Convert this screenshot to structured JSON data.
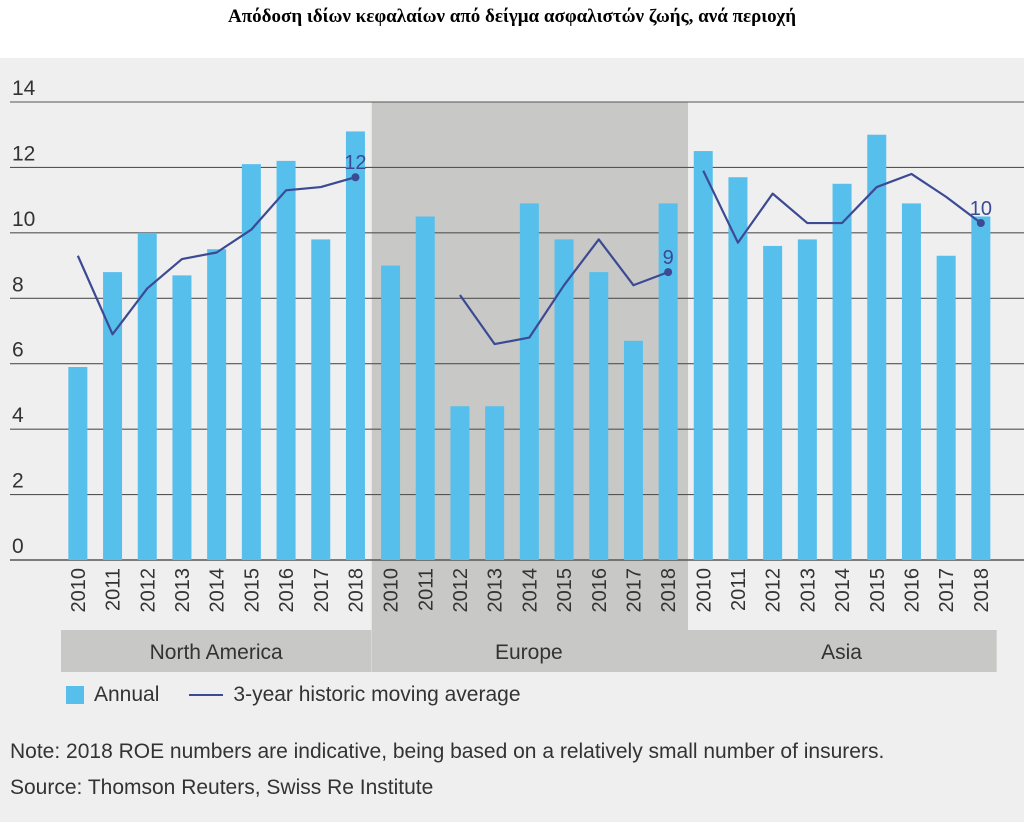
{
  "title": "Απόδοση ιδίων κεφαλαίων από δείγμα ασφαλιστών ζωής, ανά περιοχή",
  "note": "Note: 2018 ROE numbers are indicative, being based on a relatively small number of insurers.",
  "source": "Source: Thomson Reuters, Swiss Re Institute",
  "colors": {
    "bar": "#56bfeb",
    "line": "#3b4a93",
    "shade": "#c8c8c7",
    "grid": "#555555"
  },
  "chart_data": {
    "type": "bar",
    "ylim": [
      0,
      14
    ],
    "yticks": [
      0,
      2,
      4,
      6,
      8,
      10,
      12,
      14
    ],
    "legend": [
      "Annual",
      "3-year historic moving average"
    ],
    "regions": [
      {
        "name": "North America",
        "years": [
          "2010",
          "2011",
          "2012",
          "2013",
          "2014",
          "2015",
          "2016",
          "2017",
          "2018"
        ],
        "annual": [
          5.9,
          8.8,
          10.0,
          8.7,
          9.5,
          12.1,
          12.2,
          9.8,
          13.1
        ],
        "moving_average": [
          9.3,
          6.9,
          8.3,
          9.2,
          9.4,
          10.1,
          11.3,
          11.4,
          11.7
        ],
        "end_label": "12"
      },
      {
        "name": "Europe",
        "years": [
          "2010",
          "2011",
          "2012",
          "2013",
          "2014",
          "2015",
          "2016",
          "2017",
          "2018"
        ],
        "annual": [
          9.0,
          10.5,
          4.7,
          4.7,
          10.9,
          9.8,
          8.8,
          6.7,
          10.9
        ],
        "moving_average": [
          null,
          null,
          8.1,
          6.6,
          6.8,
          8.4,
          9.8,
          8.4,
          8.8
        ],
        "end_label": "9"
      },
      {
        "name": "Asia",
        "years": [
          "2010",
          "2011",
          "2012",
          "2013",
          "2014",
          "2015",
          "2016",
          "2017",
          "2018"
        ],
        "annual": [
          12.5,
          11.7,
          9.6,
          9.8,
          11.5,
          13.0,
          10.9,
          9.3,
          10.5
        ],
        "moving_average": [
          11.9,
          9.7,
          11.2,
          10.3,
          10.3,
          11.4,
          11.8,
          11.1,
          10.3
        ],
        "end_label": "10"
      }
    ]
  }
}
